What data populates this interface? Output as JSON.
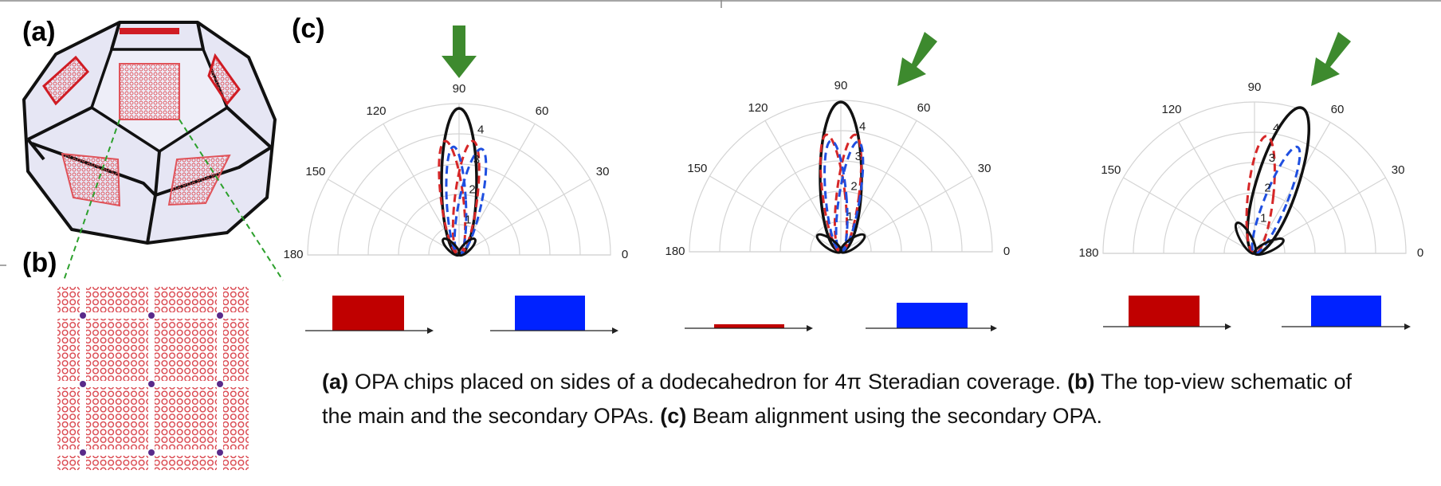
{
  "labels": {
    "a": "(a)",
    "b": "(b)",
    "c": "(c)"
  },
  "polar": {
    "angle_ticks": [
      0,
      30,
      60,
      90,
      120,
      150,
      180
    ],
    "radial_ticks": [
      1,
      2,
      3,
      4
    ],
    "rlim": [
      0,
      5
    ]
  },
  "caption": [
    {
      "text": "(a)",
      "bold": true
    },
    {
      "text": " OPA chips placed on sides of a dodecahedron for 4π Steradian coverage. ",
      "bold": false
    },
    {
      "text": "(b)",
      "bold": true
    },
    {
      "text": " The top-view schematic of the main and the secondary OPAs. ",
      "bold": false
    },
    {
      "text": "(c)",
      "bold": true
    },
    {
      "text": " Beam alignment using the secondary OPA.",
      "bold": false
    }
  ]
}
